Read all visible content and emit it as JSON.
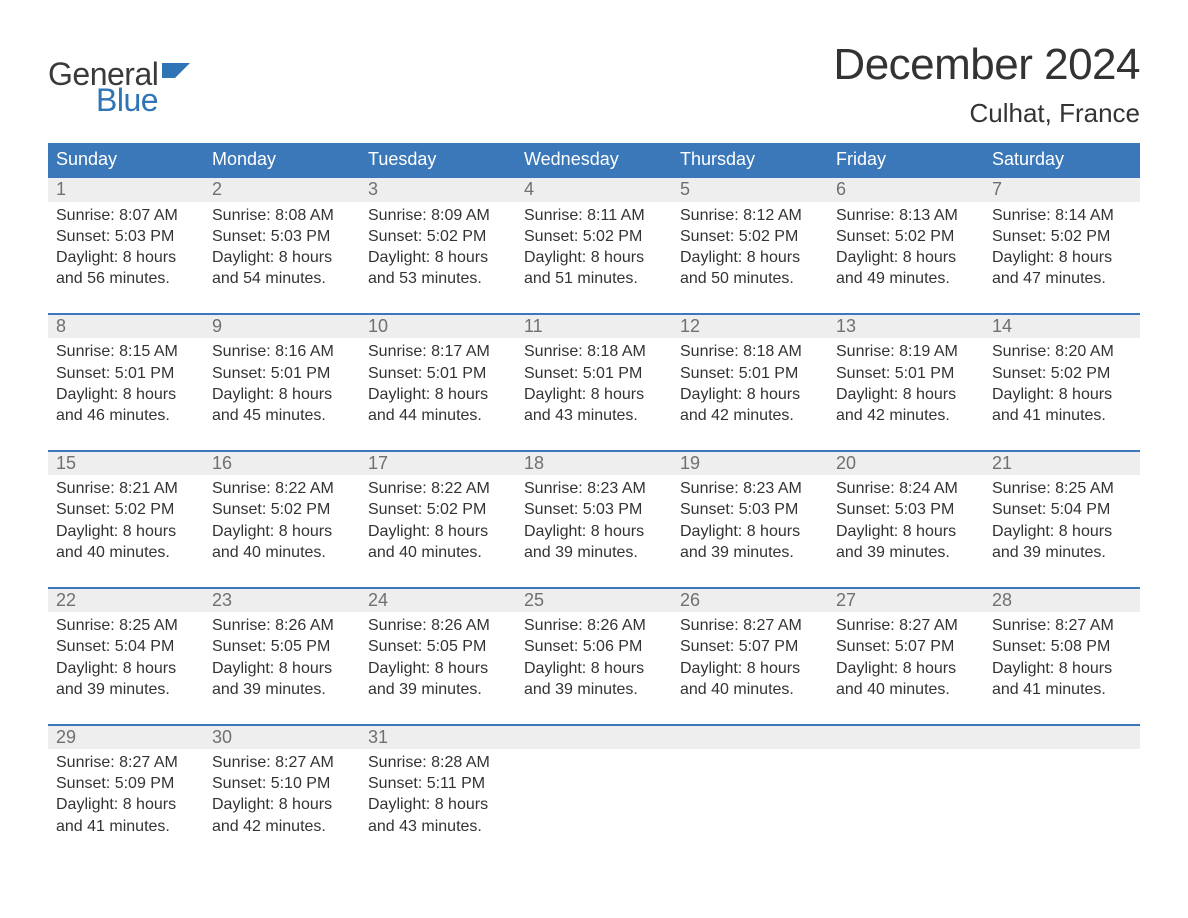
{
  "logo": {
    "word1": "General",
    "word2": "Blue",
    "text_color": "#3a3a3a",
    "accent_color": "#2f74b5"
  },
  "title": "December 2024",
  "subtitle": "Culhat, France",
  "colors": {
    "header_bg": "#3a78b9",
    "header_text": "#ffffff",
    "daynum_bg": "#eeeeee",
    "daynum_text": "#707070",
    "body_text": "#333333",
    "week_border": "#3a78b9",
    "page_bg": "#ffffff"
  },
  "day_names": [
    "Sunday",
    "Monday",
    "Tuesday",
    "Wednesday",
    "Thursday",
    "Friday",
    "Saturday"
  ],
  "weeks": [
    [
      {
        "n": "1",
        "sr": "Sunrise: 8:07 AM",
        "ss": "Sunset: 5:03 PM",
        "d1": "Daylight: 8 hours",
        "d2": "and 56 minutes."
      },
      {
        "n": "2",
        "sr": "Sunrise: 8:08 AM",
        "ss": "Sunset: 5:03 PM",
        "d1": "Daylight: 8 hours",
        "d2": "and 54 minutes."
      },
      {
        "n": "3",
        "sr": "Sunrise: 8:09 AM",
        "ss": "Sunset: 5:02 PM",
        "d1": "Daylight: 8 hours",
        "d2": "and 53 minutes."
      },
      {
        "n": "4",
        "sr": "Sunrise: 8:11 AM",
        "ss": "Sunset: 5:02 PM",
        "d1": "Daylight: 8 hours",
        "d2": "and 51 minutes."
      },
      {
        "n": "5",
        "sr": "Sunrise: 8:12 AM",
        "ss": "Sunset: 5:02 PM",
        "d1": "Daylight: 8 hours",
        "d2": "and 50 minutes."
      },
      {
        "n": "6",
        "sr": "Sunrise: 8:13 AM",
        "ss": "Sunset: 5:02 PM",
        "d1": "Daylight: 8 hours",
        "d2": "and 49 minutes."
      },
      {
        "n": "7",
        "sr": "Sunrise: 8:14 AM",
        "ss": "Sunset: 5:02 PM",
        "d1": "Daylight: 8 hours",
        "d2": "and 47 minutes."
      }
    ],
    [
      {
        "n": "8",
        "sr": "Sunrise: 8:15 AM",
        "ss": "Sunset: 5:01 PM",
        "d1": "Daylight: 8 hours",
        "d2": "and 46 minutes."
      },
      {
        "n": "9",
        "sr": "Sunrise: 8:16 AM",
        "ss": "Sunset: 5:01 PM",
        "d1": "Daylight: 8 hours",
        "d2": "and 45 minutes."
      },
      {
        "n": "10",
        "sr": "Sunrise: 8:17 AM",
        "ss": "Sunset: 5:01 PM",
        "d1": "Daylight: 8 hours",
        "d2": "and 44 minutes."
      },
      {
        "n": "11",
        "sr": "Sunrise: 8:18 AM",
        "ss": "Sunset: 5:01 PM",
        "d1": "Daylight: 8 hours",
        "d2": "and 43 minutes."
      },
      {
        "n": "12",
        "sr": "Sunrise: 8:18 AM",
        "ss": "Sunset: 5:01 PM",
        "d1": "Daylight: 8 hours",
        "d2": "and 42 minutes."
      },
      {
        "n": "13",
        "sr": "Sunrise: 8:19 AM",
        "ss": "Sunset: 5:01 PM",
        "d1": "Daylight: 8 hours",
        "d2": "and 42 minutes."
      },
      {
        "n": "14",
        "sr": "Sunrise: 8:20 AM",
        "ss": "Sunset: 5:02 PM",
        "d1": "Daylight: 8 hours",
        "d2": "and 41 minutes."
      }
    ],
    [
      {
        "n": "15",
        "sr": "Sunrise: 8:21 AM",
        "ss": "Sunset: 5:02 PM",
        "d1": "Daylight: 8 hours",
        "d2": "and 40 minutes."
      },
      {
        "n": "16",
        "sr": "Sunrise: 8:22 AM",
        "ss": "Sunset: 5:02 PM",
        "d1": "Daylight: 8 hours",
        "d2": "and 40 minutes."
      },
      {
        "n": "17",
        "sr": "Sunrise: 8:22 AM",
        "ss": "Sunset: 5:02 PM",
        "d1": "Daylight: 8 hours",
        "d2": "and 40 minutes."
      },
      {
        "n": "18",
        "sr": "Sunrise: 8:23 AM",
        "ss": "Sunset: 5:03 PM",
        "d1": "Daylight: 8 hours",
        "d2": "and 39 minutes."
      },
      {
        "n": "19",
        "sr": "Sunrise: 8:23 AM",
        "ss": "Sunset: 5:03 PM",
        "d1": "Daylight: 8 hours",
        "d2": "and 39 minutes."
      },
      {
        "n": "20",
        "sr": "Sunrise: 8:24 AM",
        "ss": "Sunset: 5:03 PM",
        "d1": "Daylight: 8 hours",
        "d2": "and 39 minutes."
      },
      {
        "n": "21",
        "sr": "Sunrise: 8:25 AM",
        "ss": "Sunset: 5:04 PM",
        "d1": "Daylight: 8 hours",
        "d2": "and 39 minutes."
      }
    ],
    [
      {
        "n": "22",
        "sr": "Sunrise: 8:25 AM",
        "ss": "Sunset: 5:04 PM",
        "d1": "Daylight: 8 hours",
        "d2": "and 39 minutes."
      },
      {
        "n": "23",
        "sr": "Sunrise: 8:26 AM",
        "ss": "Sunset: 5:05 PM",
        "d1": "Daylight: 8 hours",
        "d2": "and 39 minutes."
      },
      {
        "n": "24",
        "sr": "Sunrise: 8:26 AM",
        "ss": "Sunset: 5:05 PM",
        "d1": "Daylight: 8 hours",
        "d2": "and 39 minutes."
      },
      {
        "n": "25",
        "sr": "Sunrise: 8:26 AM",
        "ss": "Sunset: 5:06 PM",
        "d1": "Daylight: 8 hours",
        "d2": "and 39 minutes."
      },
      {
        "n": "26",
        "sr": "Sunrise: 8:27 AM",
        "ss": "Sunset: 5:07 PM",
        "d1": "Daylight: 8 hours",
        "d2": "and 40 minutes."
      },
      {
        "n": "27",
        "sr": "Sunrise: 8:27 AM",
        "ss": "Sunset: 5:07 PM",
        "d1": "Daylight: 8 hours",
        "d2": "and 40 minutes."
      },
      {
        "n": "28",
        "sr": "Sunrise: 8:27 AM",
        "ss": "Sunset: 5:08 PM",
        "d1": "Daylight: 8 hours",
        "d2": "and 41 minutes."
      }
    ],
    [
      {
        "n": "29",
        "sr": "Sunrise: 8:27 AM",
        "ss": "Sunset: 5:09 PM",
        "d1": "Daylight: 8 hours",
        "d2": "and 41 minutes."
      },
      {
        "n": "30",
        "sr": "Sunrise: 8:27 AM",
        "ss": "Sunset: 5:10 PM",
        "d1": "Daylight: 8 hours",
        "d2": "and 42 minutes."
      },
      {
        "n": "31",
        "sr": "Sunrise: 8:28 AM",
        "ss": "Sunset: 5:11 PM",
        "d1": "Daylight: 8 hours",
        "d2": "and 43 minutes."
      },
      null,
      null,
      null,
      null
    ]
  ]
}
